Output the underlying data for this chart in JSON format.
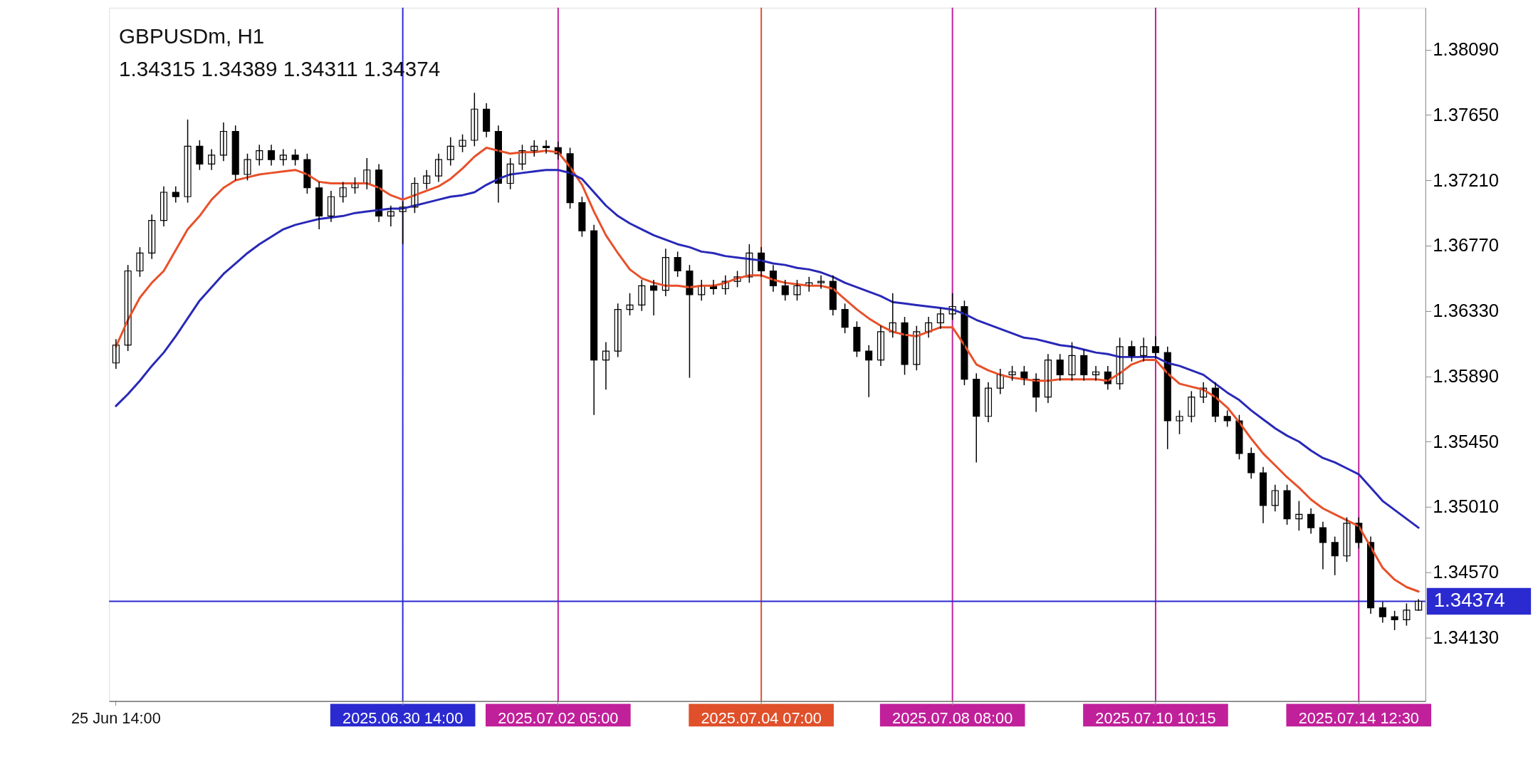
{
  "chart_data": {
    "type": "candlestick",
    "title": "GBPUSDm, H1",
    "subtitle": "1.34315 1.34389 1.34311 1.34374",
    "categories": [
      "25 Jun 14:00",
      null,
      null,
      null,
      null,
      null,
      null,
      null,
      null,
      null,
      null,
      null,
      null,
      null,
      null,
      null,
      null,
      null,
      null,
      null,
      null,
      null,
      null,
      null,
      "2025.06.30 14:00",
      null,
      null,
      null,
      null,
      null,
      null,
      null,
      null,
      null,
      null,
      null,
      null,
      "2025.07.02 05:00",
      null,
      null,
      null,
      null,
      null,
      null,
      null,
      null,
      null,
      null,
      null,
      null,
      null,
      null,
      null,
      null,
      "2025.07.04 07:00",
      null,
      null,
      null,
      null,
      null,
      null,
      null,
      null,
      null,
      null,
      null,
      null,
      null,
      null,
      null,
      "2025.07.08 08:00",
      null,
      null,
      null,
      null,
      null,
      null,
      null,
      null,
      null,
      null,
      null,
      null,
      null,
      null,
      null,
      null,
      "2025.07.10 10:15",
      null,
      null,
      null,
      null,
      null,
      null,
      null,
      null,
      null,
      null,
      null,
      null,
      null,
      null,
      null,
      null,
      "2025.07.14 12:30",
      null,
      null,
      null,
      null,
      null
    ],
    "ohlc": [
      [
        1.3598,
        1.3614,
        1.3594,
        1.361
      ],
      [
        1.361,
        1.3664,
        1.3606,
        1.366
      ],
      [
        1.366,
        1.3676,
        1.3656,
        1.3672
      ],
      [
        1.3672,
        1.3698,
        1.3668,
        1.3694
      ],
      [
        1.3694,
        1.3717,
        1.369,
        1.3713
      ],
      [
        1.3713,
        1.3717,
        1.3706,
        1.371
      ],
      [
        1.371,
        1.3762,
        1.3706,
        1.3744
      ],
      [
        1.3744,
        1.3748,
        1.3728,
        1.3732
      ],
      [
        1.3732,
        1.3742,
        1.3728,
        1.3738
      ],
      [
        1.3738,
        1.376,
        1.3734,
        1.3754
      ],
      [
        1.3754,
        1.3758,
        1.3721,
        1.3725
      ],
      [
        1.3725,
        1.3739,
        1.3721,
        1.3735
      ],
      [
        1.3735,
        1.3745,
        1.3731,
        1.3741
      ],
      [
        1.3741,
        1.3745,
        1.3731,
        1.3735
      ],
      [
        1.3735,
        1.3742,
        1.3731,
        1.3738
      ],
      [
        1.3738,
        1.3742,
        1.3731,
        1.3735
      ],
      [
        1.3735,
        1.3739,
        1.3712,
        1.3716
      ],
      [
        1.3716,
        1.372,
        1.3688,
        1.3697
      ],
      [
        1.3697,
        1.3714,
        1.3693,
        1.371
      ],
      [
        1.371,
        1.372,
        1.3706,
        1.3716
      ],
      [
        1.3716,
        1.3723,
        1.3712,
        1.3719
      ],
      [
        1.3719,
        1.3736,
        1.3715,
        1.3728
      ],
      [
        1.3728,
        1.3732,
        1.3693,
        1.3697
      ],
      [
        1.3697,
        1.3704,
        1.369,
        1.37
      ],
      [
        1.37,
        1.3707,
        1.3678,
        1.3703
      ],
      [
        1.3703,
        1.3723,
        1.3699,
        1.3719
      ],
      [
        1.3719,
        1.3728,
        1.3715,
        1.3724
      ],
      [
        1.3724,
        1.3739,
        1.372,
        1.3735
      ],
      [
        1.3735,
        1.375,
        1.3731,
        1.3744
      ],
      [
        1.3744,
        1.3752,
        1.374,
        1.3748
      ],
      [
        1.3748,
        1.378,
        1.3744,
        1.3769
      ],
      [
        1.3769,
        1.3773,
        1.375,
        1.3754
      ],
      [
        1.3754,
        1.3758,
        1.3706,
        1.3719
      ],
      [
        1.3719,
        1.3736,
        1.3715,
        1.3732
      ],
      [
        1.3732,
        1.3745,
        1.3728,
        1.3741
      ],
      [
        1.3741,
        1.3748,
        1.3737,
        1.3744
      ],
      [
        1.3744,
        1.3748,
        1.3739,
        1.3743
      ],
      [
        1.3743,
        1.3747,
        1.3735,
        1.3739
      ],
      [
        1.3739,
        1.3743,
        1.3702,
        1.3706
      ],
      [
        1.3706,
        1.371,
        1.3683,
        1.3687
      ],
      [
        1.3687,
        1.3691,
        1.3563,
        1.36
      ],
      [
        1.36,
        1.3612,
        1.358,
        1.3606
      ],
      [
        1.3606,
        1.3638,
        1.3602,
        1.3634
      ],
      [
        1.3634,
        1.3645,
        1.363,
        1.3637
      ],
      [
        1.3637,
        1.3654,
        1.3633,
        1.365
      ],
      [
        1.365,
        1.3654,
        1.363,
        1.3647
      ],
      [
        1.3647,
        1.3675,
        1.3643,
        1.3669
      ],
      [
        1.3669,
        1.3673,
        1.3656,
        1.366
      ],
      [
        1.366,
        1.3664,
        1.3588,
        1.3644
      ],
      [
        1.3644,
        1.3654,
        1.364,
        1.365
      ],
      [
        1.365,
        1.3654,
        1.3644,
        1.3648
      ],
      [
        1.3648,
        1.3657,
        1.3644,
        1.3653
      ],
      [
        1.3653,
        1.366,
        1.3649,
        1.3656
      ],
      [
        1.3656,
        1.3678,
        1.3652,
        1.3672
      ],
      [
        1.3672,
        1.3676,
        1.3656,
        1.366
      ],
      [
        1.366,
        1.3664,
        1.3646,
        1.365
      ],
      [
        1.365,
        1.3654,
        1.364,
        1.3644
      ],
      [
        1.3644,
        1.3654,
        1.364,
        1.365
      ],
      [
        1.365,
        1.3656,
        1.3646,
        1.3652
      ],
      [
        1.3652,
        1.3657,
        1.3648,
        1.3653
      ],
      [
        1.3653,
        1.3657,
        1.363,
        1.3634
      ],
      [
        1.3634,
        1.3638,
        1.3618,
        1.3622
      ],
      [
        1.3622,
        1.3626,
        1.3602,
        1.3606
      ],
      [
        1.3606,
        1.361,
        1.3575,
        1.36
      ],
      [
        1.36,
        1.3623,
        1.3596,
        1.3619
      ],
      [
        1.3619,
        1.3645,
        1.3615,
        1.3625
      ],
      [
        1.3625,
        1.3629,
        1.359,
        1.3597
      ],
      [
        1.3597,
        1.3623,
        1.3593,
        1.3619
      ],
      [
        1.3619,
        1.3629,
        1.3615,
        1.3625
      ],
      [
        1.3625,
        1.3635,
        1.3621,
        1.3631
      ],
      [
        1.3631,
        1.3645,
        1.3627,
        1.3636
      ],
      [
        1.3636,
        1.364,
        1.3583,
        1.3587
      ],
      [
        1.3587,
        1.3591,
        1.3531,
        1.3562
      ],
      [
        1.3562,
        1.3585,
        1.3558,
        1.3581
      ],
      [
        1.3581,
        1.3594,
        1.3577,
        1.359
      ],
      [
        1.359,
        1.3596,
        1.3586,
        1.3592
      ],
      [
        1.3592,
        1.3596,
        1.3583,
        1.3587
      ],
      [
        1.3587,
        1.3591,
        1.3565,
        1.3575
      ],
      [
        1.3575,
        1.3604,
        1.3571,
        1.36
      ],
      [
        1.36,
        1.3604,
        1.3586,
        1.359
      ],
      [
        1.359,
        1.3612,
        1.3586,
        1.3603
      ],
      [
        1.3603,
        1.3607,
        1.3586,
        1.359
      ],
      [
        1.359,
        1.3596,
        1.3586,
        1.3592
      ],
      [
        1.3592,
        1.3596,
        1.358,
        1.3584
      ],
      [
        1.3584,
        1.3615,
        1.358,
        1.3609
      ],
      [
        1.3609,
        1.3613,
        1.3599,
        1.3603
      ],
      [
        1.3603,
        1.3615,
        1.3599,
        1.3609
      ],
      [
        1.3609,
        1.3616,
        1.3601,
        1.3605
      ],
      [
        1.3605,
        1.3609,
        1.354,
        1.3559
      ],
      [
        1.3559,
        1.3566,
        1.355,
        1.3562
      ],
      [
        1.3562,
        1.3579,
        1.3558,
        1.3575
      ],
      [
        1.3575,
        1.3585,
        1.3571,
        1.3581
      ],
      [
        1.3581,
        1.3585,
        1.3558,
        1.3562
      ],
      [
        1.3562,
        1.3566,
        1.3555,
        1.3559
      ],
      [
        1.3559,
        1.3563,
        1.3533,
        1.3537
      ],
      [
        1.3537,
        1.3541,
        1.352,
        1.3524
      ],
      [
        1.3524,
        1.3528,
        1.349,
        1.3502
      ],
      [
        1.3502,
        1.3516,
        1.3498,
        1.3512
      ],
      [
        1.3512,
        1.3516,
        1.3489,
        1.3493
      ],
      [
        1.3493,
        1.3505,
        1.3485,
        1.3496
      ],
      [
        1.3496,
        1.35,
        1.3483,
        1.3487
      ],
      [
        1.3487,
        1.3491,
        1.3459,
        1.3477
      ],
      [
        1.3477,
        1.3481,
        1.3455,
        1.3468
      ],
      [
        1.3468,
        1.3494,
        1.3464,
        1.349
      ],
      [
        1.349,
        1.3494,
        1.3473,
        1.3477
      ],
      [
        1.3477,
        1.3481,
        1.3429,
        1.3433
      ],
      [
        1.3433,
        1.3437,
        1.3423,
        1.3427
      ],
      [
        1.3427,
        1.3431,
        1.3418,
        1.3425
      ],
      [
        1.3425,
        1.3436,
        1.3421,
        1.34315
      ],
      [
        1.34315,
        1.34389,
        1.34311,
        1.34374
      ]
    ],
    "series": [
      {
        "type": "line",
        "color": "#e8502a",
        "values": [
          1.3609,
          1.3627,
          1.3642,
          1.3652,
          1.366,
          1.3674,
          1.3688,
          1.3697,
          1.3708,
          1.3716,
          1.3721,
          1.3723,
          1.3725,
          1.3726,
          1.3727,
          1.3728,
          1.3725,
          1.372,
          1.3719,
          1.3719,
          1.3719,
          1.3719,
          1.3716,
          1.3711,
          1.3708,
          1.3711,
          1.3714,
          1.3717,
          1.3722,
          1.3729,
          1.3737,
          1.3743,
          1.3741,
          1.3739,
          1.374,
          1.374,
          1.3741,
          1.374,
          1.373,
          1.3718,
          1.37,
          1.3684,
          1.3672,
          1.3661,
          1.3655,
          1.3652,
          1.365,
          1.365,
          1.3649,
          1.365,
          1.365,
          1.3652,
          1.3655,
          1.3657,
          1.3657,
          1.3654,
          1.3652,
          1.3651,
          1.365,
          1.365,
          1.3648,
          1.3641,
          1.3634,
          1.3628,
          1.3623,
          1.3619,
          1.3617,
          1.3616,
          1.3619,
          1.3622,
          1.3622,
          1.361,
          1.3597,
          1.3593,
          1.359,
          1.3588,
          1.3587,
          1.3586,
          1.3586,
          1.3587,
          1.3587,
          1.3587,
          1.3587,
          1.3586,
          1.3591,
          1.3597,
          1.36,
          1.36,
          1.3591,
          1.3584,
          1.3582,
          1.358,
          1.3575,
          1.3568,
          1.3558,
          1.3547,
          1.3537,
          1.3529,
          1.3521,
          1.3514,
          1.3506,
          1.35,
          1.3496,
          1.3492,
          1.3488,
          1.3474,
          1.346,
          1.3452,
          1.3447,
          1.3444
        ]
      },
      {
        "type": "line",
        "color": "#2828b8",
        "values": [
          1.3569,
          1.3577,
          1.3586,
          1.3596,
          1.3605,
          1.3616,
          1.3628,
          1.364,
          1.3649,
          1.3658,
          1.3665,
          1.3672,
          1.3678,
          1.3683,
          1.3688,
          1.3691,
          1.3693,
          1.3695,
          1.3696,
          1.3697,
          1.3699,
          1.37,
          1.3701,
          1.3702,
          1.3702,
          1.3704,
          1.3706,
          1.3708,
          1.371,
          1.3711,
          1.3713,
          1.3718,
          1.3722,
          1.3725,
          1.3726,
          1.3727,
          1.3728,
          1.3728,
          1.3726,
          1.3722,
          1.3713,
          1.3704,
          1.3697,
          1.3692,
          1.3688,
          1.3684,
          1.3681,
          1.3678,
          1.3676,
          1.3673,
          1.3672,
          1.367,
          1.3669,
          1.3668,
          1.3667,
          1.3665,
          1.3664,
          1.3662,
          1.3661,
          1.3659,
          1.3656,
          1.3652,
          1.3649,
          1.3646,
          1.3643,
          1.3639,
          1.3638,
          1.3637,
          1.3636,
          1.3635,
          1.3634,
          1.3631,
          1.3627,
          1.3624,
          1.3621,
          1.3618,
          1.3615,
          1.3614,
          1.3612,
          1.361,
          1.3609,
          1.3607,
          1.3605,
          1.3604,
          1.3602,
          1.3602,
          1.3602,
          1.3602,
          1.3598,
          1.3596,
          1.3593,
          1.359,
          1.3584,
          1.3578,
          1.3573,
          1.3566,
          1.356,
          1.3554,
          1.3549,
          1.3545,
          1.3539,
          1.3534,
          1.3531,
          1.3527,
          1.3523,
          1.3514,
          1.3505,
          1.3499,
          1.3493,
          1.3487
        ]
      }
    ],
    "ylim": [
      1.33702,
      1.38373
    ],
    "yticks": [
      {
        "value": 1.3413,
        "label": "1.34130"
      },
      {
        "value": 1.3457,
        "label": "1.34570"
      },
      {
        "value": 1.3501,
        "label": "1.35010"
      },
      {
        "value": 1.3545,
        "label": "1.35450"
      },
      {
        "value": 1.3589,
        "label": "1.35890"
      },
      {
        "value": 1.3633,
        "label": "1.36330"
      },
      {
        "value": 1.3677,
        "label": "1.36770"
      },
      {
        "value": 1.3721,
        "label": "1.37210"
      },
      {
        "value": 1.3765,
        "label": "1.37650"
      },
      {
        "value": 1.3809,
        "label": "1.38090"
      }
    ],
    "ref_lines": [
      {
        "axis": "y",
        "value": 1.34374,
        "label": "1.34374",
        "color": "#2a2ad0"
      },
      {
        "axis": "x",
        "value": "2025.06.30 14:00",
        "color": "#2a2ad0"
      },
      {
        "axis": "x",
        "value": "2025.07.02 05:00",
        "color": "#c0209a"
      },
      {
        "axis": "x",
        "value": "2025.07.04 07:00",
        "color": "#e0502a"
      },
      {
        "axis": "x",
        "value": "2025.07.08 08:00",
        "color": "#c0209a"
      },
      {
        "axis": "x",
        "value": "2025.07.10 10:15",
        "color": "#c0209a"
      },
      {
        "axis": "x",
        "value": "2025.07.14 12:30",
        "color": "#c0209a"
      }
    ],
    "grid": false
  }
}
